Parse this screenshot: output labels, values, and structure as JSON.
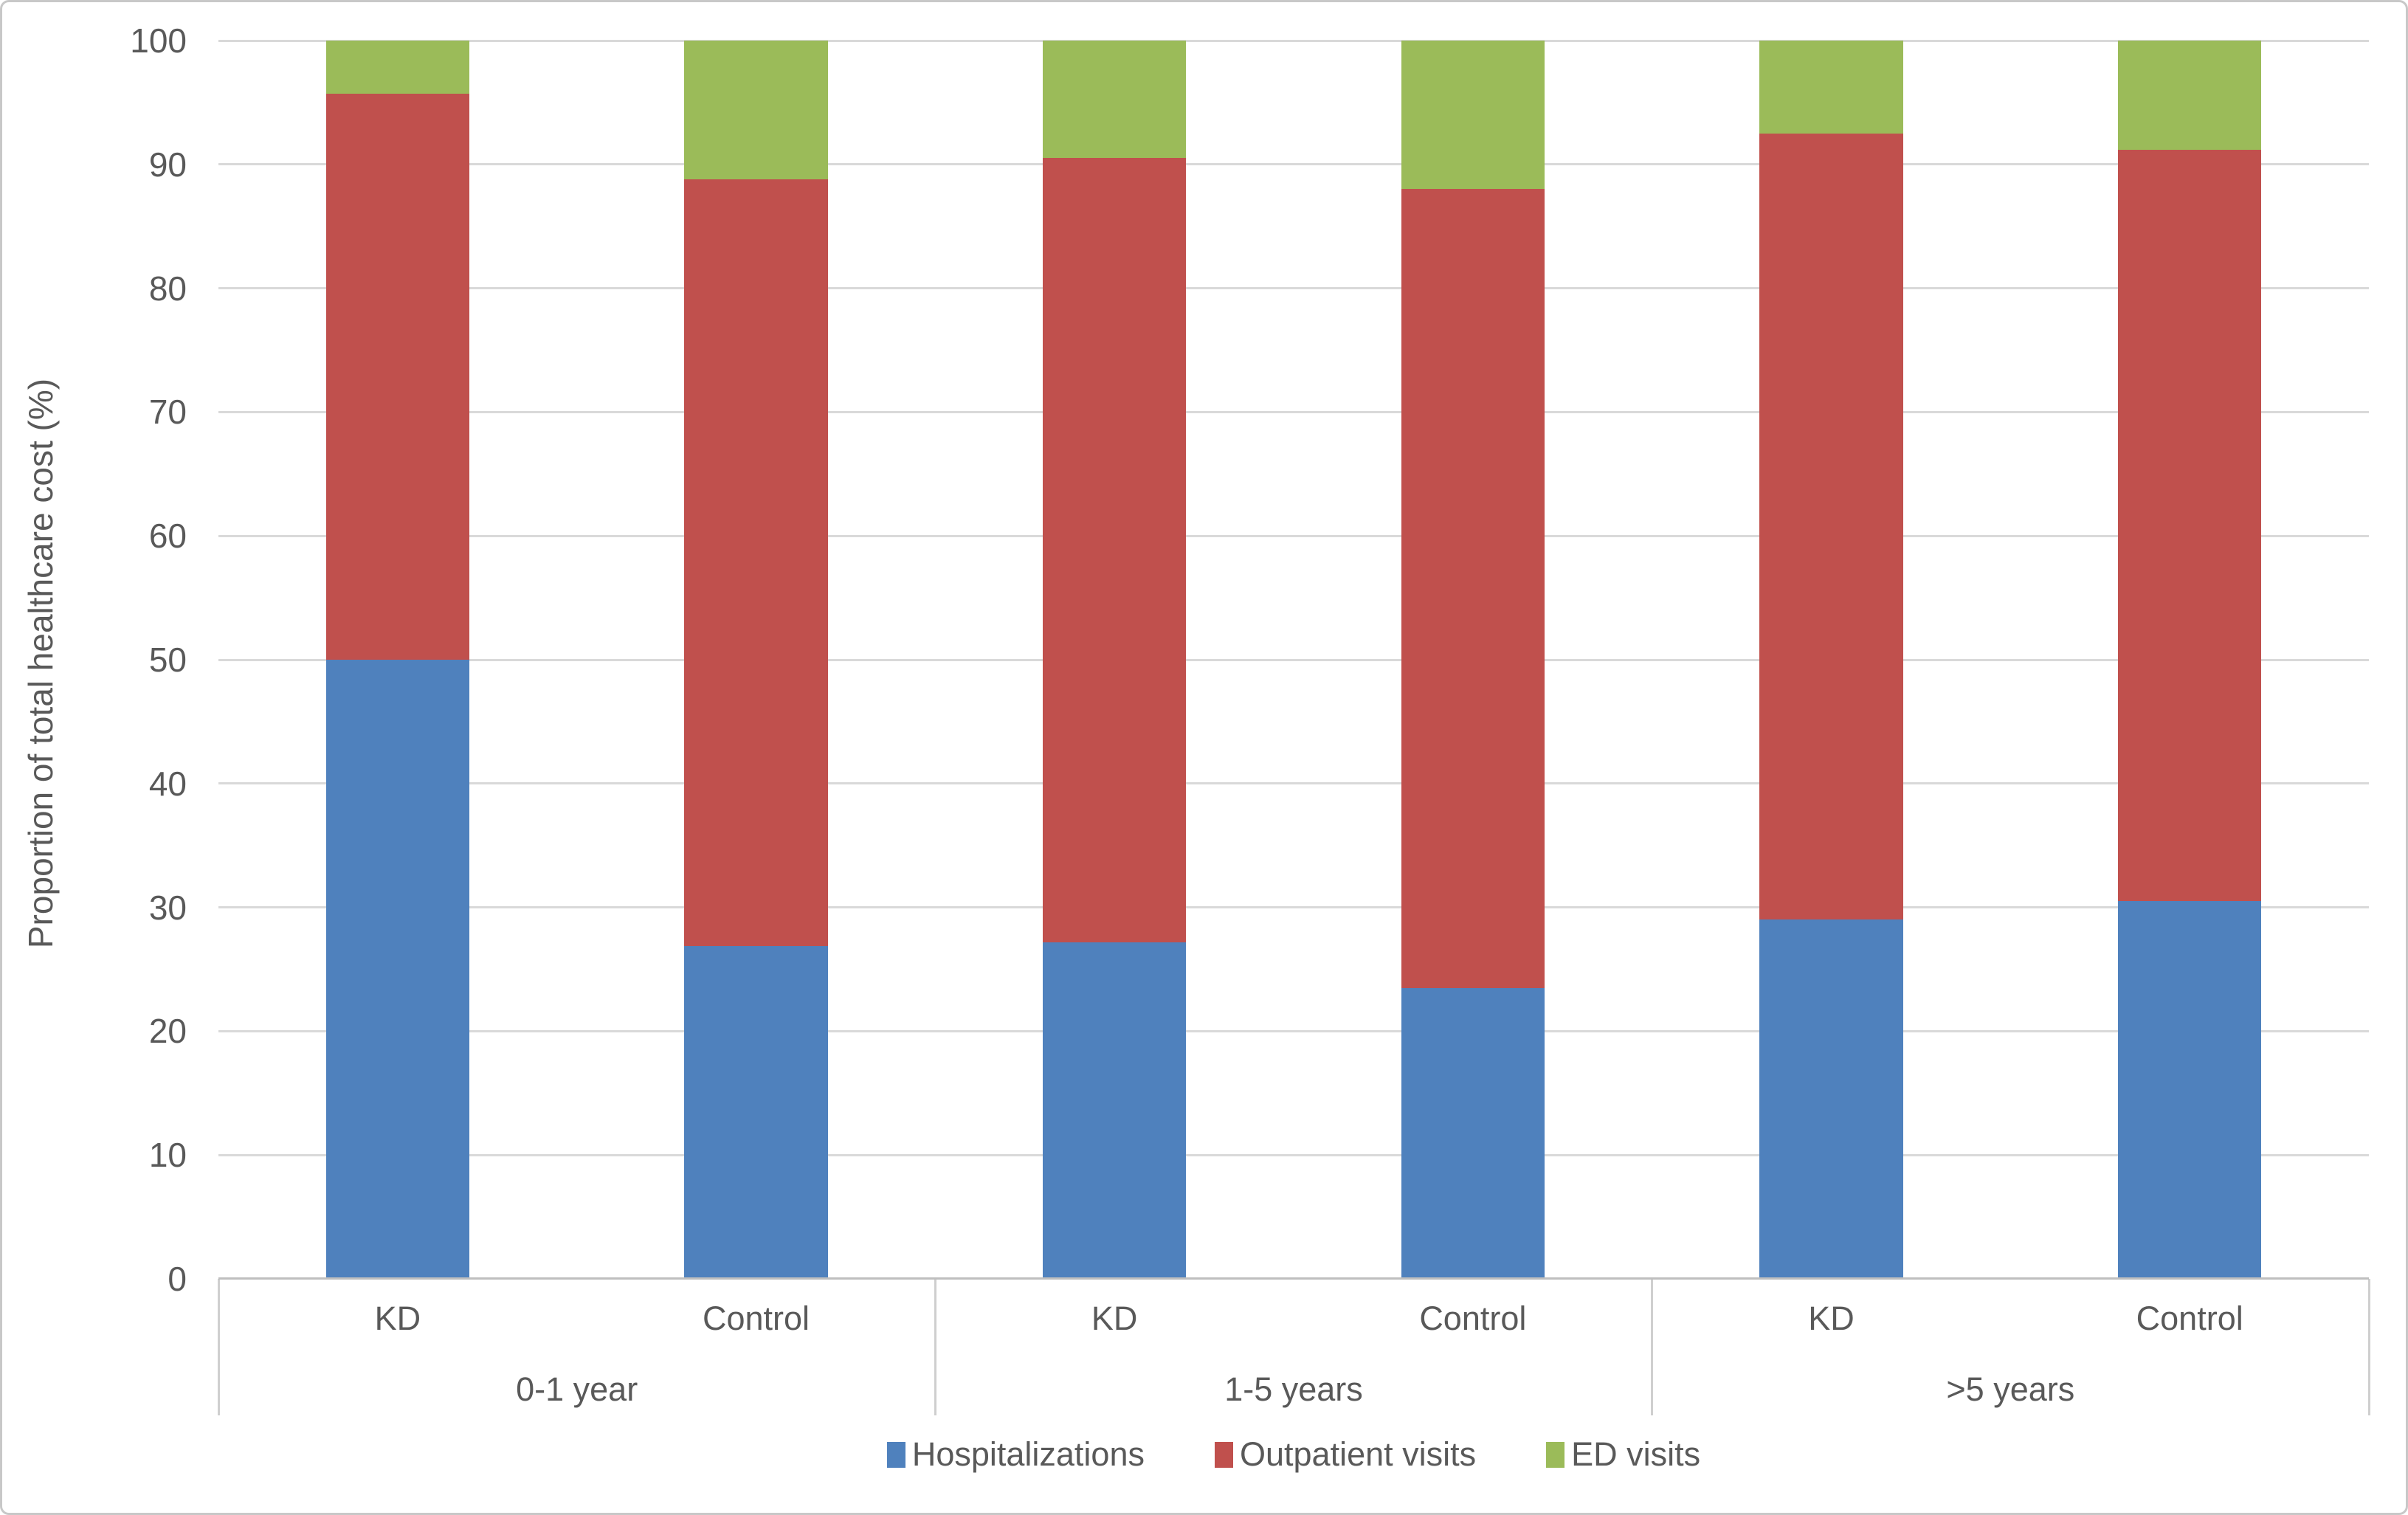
{
  "chart_data": {
    "type": "bar",
    "stacked": true,
    "orientation": "vertical",
    "title": "",
    "xlabel": "",
    "ylabel": "Proportion of total healthcare cost (%)",
    "ylim": [
      0,
      100
    ],
    "ytick_interval": 10,
    "ytick_labels": [
      "0",
      "10",
      "20",
      "30",
      "40",
      "50",
      "60",
      "70",
      "80",
      "90",
      "100"
    ],
    "grid": true,
    "legend_position": "bottom",
    "groups": [
      "0-1 year",
      "1-5 years",
      ">5 years"
    ],
    "categories": [
      "KD",
      "Control",
      "KD",
      "Control",
      "KD",
      "Control"
    ],
    "series": [
      {
        "name": "Hospitalizations",
        "color": "#4F81BD",
        "values": [
          50.0,
          26.9,
          27.2,
          23.5,
          29.0,
          30.5
        ]
      },
      {
        "name": "Outpatient visits",
        "color": "#C0504D",
        "values": [
          45.7,
          61.9,
          63.3,
          64.5,
          63.5,
          60.7
        ]
      },
      {
        "name": "ED visits",
        "color": "#9BBB59",
        "values": [
          4.3,
          11.2,
          9.5,
          12.0,
          7.5,
          8.8
        ]
      }
    ],
    "cumulative_tops": {
      "hospitalizations": [
        50.0,
        26.9,
        27.2,
        23.5,
        29.0,
        30.5
      ],
      "outpatient_visits": [
        95.7,
        88.8,
        90.5,
        88.0,
        92.5,
        91.2
      ],
      "ed_visits": [
        100,
        100,
        100,
        100,
        100,
        100
      ]
    }
  },
  "colors": {
    "gridline": "#d9d9d9",
    "axis_line": "#bfbfbf",
    "separator": "#cfcfcf",
    "text": "#595959",
    "frame_border": "#c8c8c8",
    "background": "#ffffff"
  }
}
